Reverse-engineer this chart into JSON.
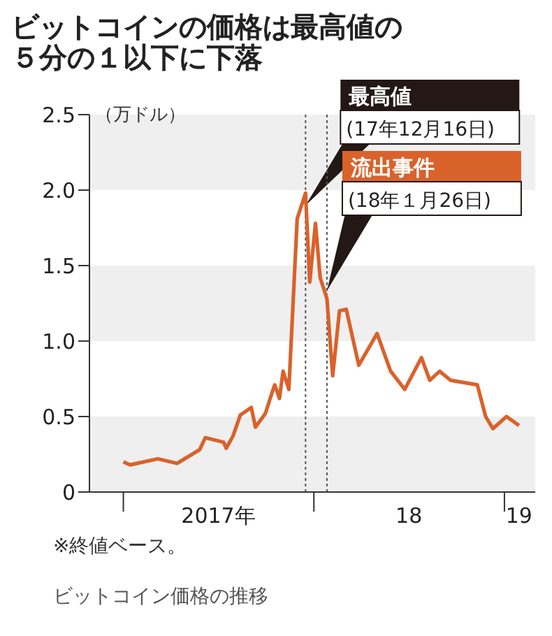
{
  "chart_data": {
    "type": "line",
    "title": "ビットコインの価格は最高値の５分の１以下に下落",
    "ylabel": "（万ドル）",
    "x": [
      "2017-01-01",
      "2017-01-14",
      "2017-03-08",
      "2017-04-14",
      "2017-05-27",
      "2017-06-07",
      "2017-07-12",
      "2017-07-17",
      "2017-07-30",
      "2017-08-13",
      "2017-09-03",
      "2017-09-11",
      "2017-09-30",
      "2017-10-13",
      "2017-10-18",
      "2017-10-27",
      "2017-11-03",
      "2017-11-14",
      "2017-11-30",
      "2017-12-16",
      "2017-12-24",
      "2018-01-04",
      "2018-01-13",
      "2018-01-26",
      "2018-02-06",
      "2018-02-19",
      "2018-03-04",
      "2018-03-28",
      "2018-05-02",
      "2018-05-28",
      "2018-06-24",
      "2018-07-26",
      "2018-08-11",
      "2018-08-30",
      "2018-09-20",
      "2018-11-10",
      "2018-11-26",
      "2018-12-10",
      "2019-01-05",
      "2019-01-29"
    ],
    "series": [
      {
        "color": "#d9622b",
        "values": [
          0.2,
          0.18,
          0.22,
          0.19,
          0.28,
          0.36,
          0.33,
          0.29,
          0.37,
          0.51,
          0.56,
          0.43,
          0.52,
          0.66,
          0.71,
          0.62,
          0.8,
          0.68,
          1.81,
          1.98,
          1.39,
          1.78,
          1.42,
          1.28,
          0.77,
          1.2,
          1.21,
          0.84,
          1.05,
          0.8,
          0.68,
          0.89,
          0.74,
          0.8,
          0.74,
          0.71,
          0.5,
          0.42,
          0.5,
          0.44
        ]
      }
    ],
    "xlim": [
      "2016-10-28",
      "2019-03-01"
    ],
    "xticks": [
      {
        "value": "2017-01-01",
        "label": null
      },
      {
        "value": "2017-07-02",
        "label": "2017年"
      },
      {
        "value": "2018-01-01",
        "label": null
      },
      {
        "value": "2018-07-02",
        "label": "18"
      },
      {
        "value": "2019-01-01",
        "label": null
      },
      {
        "value": "2019-01-29",
        "label": "19"
      }
    ],
    "ylim": [
      0,
      2.5
    ],
    "yticks": [
      0,
      0.5,
      {
        "value": 1,
        "label": "1.0"
      },
      1.5,
      {
        "value": 2,
        "label": "2.0"
      },
      2.5
    ],
    "bands": [
      {
        "axis": "y",
        "from": 0,
        "to": 0.5,
        "color": "#efefef"
      },
      {
        "axis": "y",
        "from": 1,
        "to": 1.5,
        "color": "#efefef"
      },
      {
        "axis": "y",
        "from": 2,
        "to": 2.5,
        "color": "#efefef"
      }
    ],
    "ref_lines": [
      {
        "axis": "x",
        "value": "2017-12-16",
        "label": "最高値\n(17年12月16日)",
        "color": "#555555",
        "line_style": "dotted"
      },
      {
        "axis": "x",
        "value": "2018-01-26",
        "label": "流出事件\n(18年１月26日)",
        "color": "#555555",
        "line_style": "dotted"
      }
    ],
    "marker": "none",
    "line_style": "solid",
    "grid": false,
    "annotations": [
      "※終値ベース。",
      "ビットコイン価格の推移"
    ]
  }
}
